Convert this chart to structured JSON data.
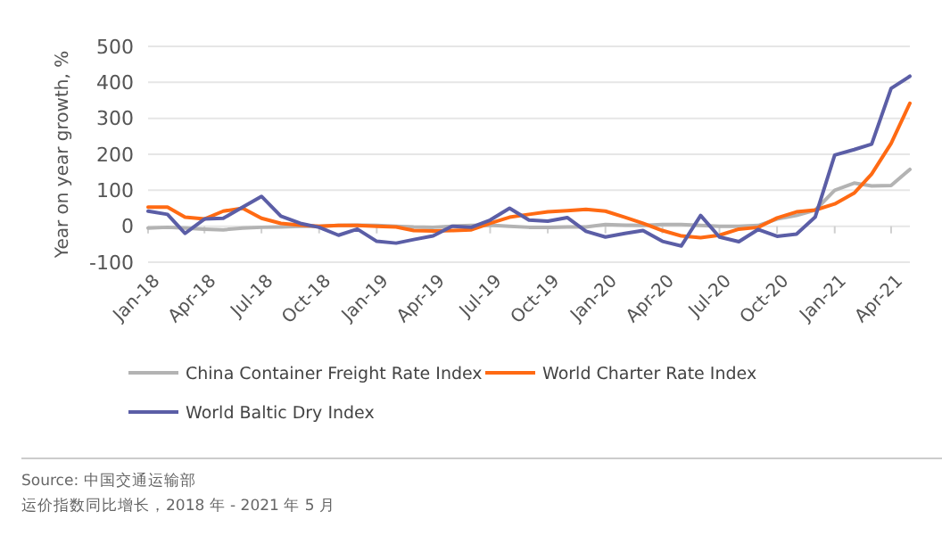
{
  "chart_data": {
    "type": "line",
    "ylabel": "Year on year growth, %",
    "x": [
      "2018-01",
      "2018-02",
      "2018-03",
      "2018-04",
      "2018-05",
      "2018-06",
      "2018-07",
      "2018-08",
      "2018-09",
      "2018-10",
      "2018-11",
      "2018-12",
      "2019-01",
      "2019-02",
      "2019-03",
      "2019-04",
      "2019-05",
      "2019-06",
      "2019-07",
      "2019-08",
      "2019-09",
      "2019-10",
      "2019-11",
      "2019-12",
      "2020-01",
      "2020-02",
      "2020-03",
      "2020-04",
      "2020-05",
      "2020-06",
      "2020-07",
      "2020-08",
      "2020-09",
      "2020-10",
      "2020-11",
      "2020-12",
      "2021-01",
      "2021-02",
      "2021-03",
      "2021-04",
      "2021-05"
    ],
    "series": [
      {
        "name": "China Container Freight Rate Index",
        "color": "#b3b3b3",
        "values": [
          -5,
          -3,
          -5,
          -8,
          -10,
          -5,
          -3,
          -2,
          0,
          0,
          2,
          3,
          2,
          0,
          -2,
          -3,
          0,
          2,
          3,
          0,
          -3,
          -3,
          -2,
          -2,
          5,
          3,
          2,
          5,
          5,
          2,
          0,
          0,
          2,
          20,
          30,
          45,
          100,
          120,
          112,
          113,
          158
        ]
      },
      {
        "name": "World Charter Rate Index",
        "color": "#ff6a13",
        "values": [
          53,
          53,
          25,
          20,
          42,
          50,
          22,
          8,
          3,
          0,
          2,
          2,
          0,
          -2,
          -12,
          -13,
          -12,
          -10,
          8,
          25,
          33,
          40,
          43,
          47,
          42,
          25,
          8,
          -12,
          -27,
          -32,
          -25,
          -8,
          -3,
          23,
          40,
          45,
          62,
          92,
          145,
          230,
          342
        ]
      },
      {
        "name": "World Baltic Dry Index",
        "color": "#5b5ea6",
        "values": [
          42,
          33,
          -20,
          20,
          22,
          53,
          83,
          28,
          8,
          -3,
          -25,
          -8,
          -42,
          -47,
          -37,
          -27,
          0,
          -3,
          17,
          50,
          17,
          14,
          24,
          -14,
          -30,
          -20,
          -12,
          -42,
          -55,
          30,
          -30,
          -43,
          -9,
          -28,
          -22,
          26,
          198,
          213,
          228,
          383,
          417
        ]
      }
    ],
    "xlim": [
      "2018-01",
      "2021-05"
    ],
    "xticks": [
      {
        "value": "2018-01",
        "label": "Jan-18"
      },
      {
        "value": "2018-04",
        "label": "Apr-18"
      },
      {
        "value": "2018-07",
        "label": "Jul-18"
      },
      {
        "value": "2018-10",
        "label": "Oct-18"
      },
      {
        "value": "2019-01",
        "label": "Jan-19"
      },
      {
        "value": "2019-04",
        "label": "Apr-19"
      },
      {
        "value": "2019-07",
        "label": "Jul-19"
      },
      {
        "value": "2019-10",
        "label": "Oct-19"
      },
      {
        "value": "2020-01",
        "label": "Jan-20"
      },
      {
        "value": "2020-04",
        "label": "Apr-20"
      },
      {
        "value": "2020-07",
        "label": "Jul-20"
      },
      {
        "value": "2020-10",
        "label": "Oct-20"
      },
      {
        "value": "2021-01",
        "label": "Jan-21"
      },
      {
        "value": "2021-04",
        "label": "Apr-21"
      }
    ],
    "ylim": [
      -100,
      500
    ],
    "yticks": [
      -100,
      0,
      100,
      200,
      300,
      400,
      500
    ],
    "grid": "y",
    "legend": "bottom",
    "line_style": "solid",
    "marker": "none",
    "annotations": [
      "Source: 中国交通运输部",
      "运价指数同比增长，2018 年 - 2021 年 5 月"
    ]
  }
}
